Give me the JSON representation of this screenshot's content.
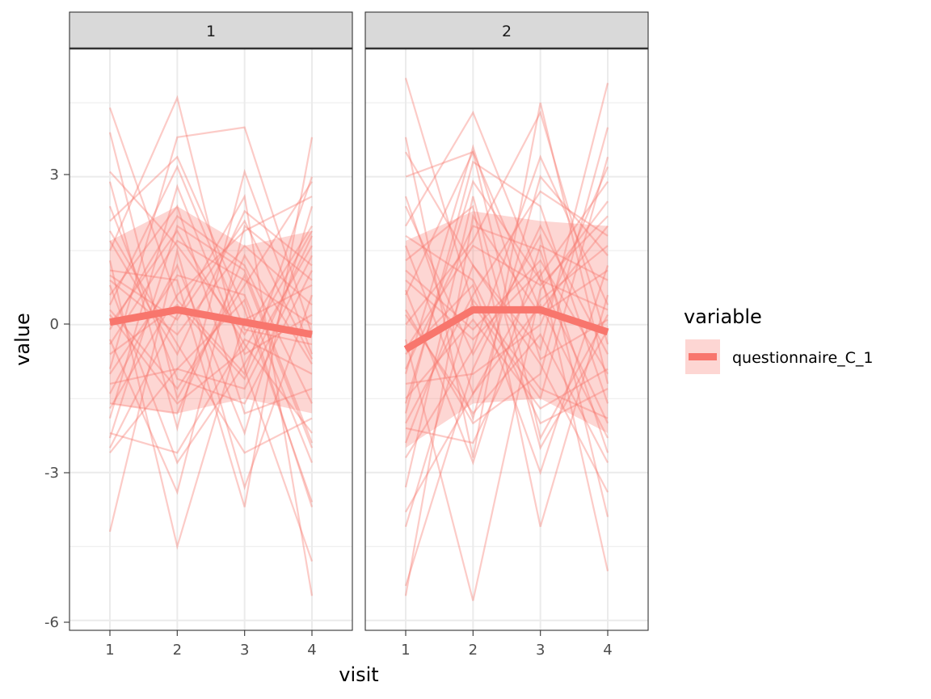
{
  "chart_data": {
    "type": "line",
    "xlabel": "visit",
    "ylabel": "value",
    "x": [
      1,
      2,
      3,
      4
    ],
    "x_ticks": [
      "1",
      "2",
      "3",
      "4"
    ],
    "y_ticks": [
      "3",
      "0",
      "-3",
      "-6"
    ],
    "ylim": [
      -6.2,
      5.6
    ],
    "grid": true,
    "legend": {
      "title": "variable",
      "position": "right",
      "entries": [
        {
          "label": "questionnaire_C_1",
          "color": "#F8766D"
        }
      ]
    },
    "color": "#F8766D",
    "panels": [
      {
        "label": "1",
        "mean": [
          0.05,
          0.3,
          0.05,
          -0.2
        ],
        "ribbon_upper": [
          1.7,
          2.4,
          1.6,
          1.9
        ],
        "ribbon_lower": [
          -1.6,
          -1.8,
          -1.5,
          -1.8
        ],
        "individuals": [
          [
            4.4,
            0.5,
            -1.0,
            3.0
          ],
          [
            3.9,
            -1.5,
            1.0,
            -2.5
          ],
          [
            3.1,
            1.6,
            -0.2,
            2.0
          ],
          [
            2.9,
            -2.1,
            3.1,
            -0.6
          ],
          [
            2.1,
            3.4,
            0.3,
            -3.6
          ],
          [
            1.7,
            -0.6,
            2.3,
            1.2
          ],
          [
            1.5,
            4.6,
            -0.9,
            -4.8
          ],
          [
            1.1,
            0.9,
            -3.7,
            3.8
          ],
          [
            0.9,
            -0.2,
            1.6,
            0.4
          ],
          [
            0.6,
            2.4,
            -1.8,
            -1.3
          ],
          [
            0.3,
            -1.3,
            0.8,
            2.9
          ],
          [
            0.0,
            1.9,
            -0.4,
            -2.2
          ],
          [
            -0.3,
            -3.4,
            2.0,
            0.9
          ],
          [
            -0.6,
            0.4,
            -1.1,
            1.8
          ],
          [
            -0.9,
            3.8,
            4.0,
            -0.2
          ],
          [
            -1.2,
            -0.9,
            0.5,
            -3.7
          ],
          [
            -1.4,
            1.2,
            -2.2,
            2.4
          ],
          [
            -1.6,
            -1.8,
            1.4,
            -0.8
          ],
          [
            -1.9,
            2.8,
            -0.6,
            0.2
          ],
          [
            -2.2,
            -2.6,
            -0.3,
            -1.0
          ],
          [
            -2.5,
            0.2,
            2.6,
            -5.5
          ],
          [
            -2.6,
            -0.9,
            -1.3,
            1.4
          ],
          [
            -4.2,
            1.5,
            -3.3,
            0.6
          ],
          [
            0.8,
            -2.8,
            -0.8,
            1.6
          ],
          [
            -0.1,
            2.2,
            1.2,
            -1.6
          ],
          [
            1.3,
            -4.5,
            0.1,
            0.8
          ],
          [
            -1.0,
            1.0,
            0.6,
            -2.8
          ],
          [
            2.4,
            -1.1,
            -1.6,
            1.1
          ],
          [
            0.4,
            3.2,
            -0.1,
            -0.4
          ],
          [
            -1.7,
            0.6,
            1.9,
            2.6
          ],
          [
            1.9,
            -0.4,
            -2.6,
            -1.9
          ],
          [
            -0.4,
            1.7,
            0.9,
            0.0
          ],
          [
            0.2,
            -1.6,
            -0.5,
            1.9
          ],
          [
            -2.3,
            2.0,
            1.1,
            -2.4
          ],
          [
            1.0,
            0.1,
            2.1,
            -0.7
          ]
        ]
      },
      {
        "label": "2",
        "mean": [
          -0.5,
          0.3,
          0.3,
          -0.15
        ],
        "ribbon_upper": [
          1.7,
          2.3,
          2.1,
          2.0
        ],
        "ribbon_lower": [
          -2.5,
          -1.6,
          -1.5,
          -2.2
        ],
        "individuals": [
          [
            5.0,
            0.4,
            -1.5,
            3.4
          ],
          [
            3.8,
            -2.7,
            4.5,
            -1.2
          ],
          [
            3.5,
            1.2,
            -0.5,
            4.9
          ],
          [
            3.0,
            3.5,
            -2.3,
            0.2
          ],
          [
            2.4,
            -0.6,
            1.8,
            -3.9
          ],
          [
            2.0,
            4.3,
            0.9,
            -2.0
          ],
          [
            1.6,
            -1.9,
            3.0,
            1.4
          ],
          [
            1.3,
            2.4,
            -4.1,
            0.6
          ],
          [
            0.9,
            -0.3,
            1.1,
            -5.0
          ],
          [
            0.6,
            3.5,
            0.3,
            2.0
          ],
          [
            0.3,
            -2.0,
            -1.0,
            4.0
          ],
          [
            0.0,
            1.7,
            4.3,
            -0.4
          ],
          [
            -0.3,
            -5.6,
            0.7,
            2.5
          ],
          [
            -0.6,
            0.8,
            -3.0,
            1.2
          ],
          [
            -0.9,
            2.0,
            1.5,
            -2.6
          ],
          [
            -1.2,
            -1.0,
            0.0,
            3.2
          ],
          [
            -1.5,
            0.1,
            -1.7,
            -0.9
          ],
          [
            -1.8,
            3.3,
            2.4,
            -1.6
          ],
          [
            -2.1,
            -2.4,
            0.5,
            1.6
          ],
          [
            -2.4,
            1.2,
            -0.8,
            -3.4
          ],
          [
            -2.7,
            -0.5,
            3.4,
            0.4
          ],
          [
            -3.3,
            2.6,
            -2.5,
            -0.1
          ],
          [
            -3.8,
            -1.4,
            1.0,
            2.9
          ],
          [
            -4.1,
            0.5,
            -1.3,
            -1.9
          ],
          [
            -5.5,
            2.2,
            0.2,
            1.1
          ],
          [
            -5.3,
            -0.9,
            2.0,
            -0.6
          ],
          [
            0.7,
            -2.8,
            1.6,
            0.9
          ],
          [
            1.8,
            0.9,
            -2.0,
            -1.3
          ],
          [
            -0.5,
            1.6,
            0.8,
            2.2
          ],
          [
            2.6,
            -1.4,
            0.4,
            -2.3
          ],
          [
            -1.0,
            3.6,
            -0.7,
            0.1
          ],
          [
            1.1,
            -0.1,
            1.3,
            -1.0
          ],
          [
            -2.0,
            0.6,
            2.7,
            1.8
          ],
          [
            0.2,
            -1.8,
            -0.2,
            -2.8
          ],
          [
            -1.6,
            2.9,
            0.9,
            0.3
          ]
        ]
      }
    ]
  }
}
